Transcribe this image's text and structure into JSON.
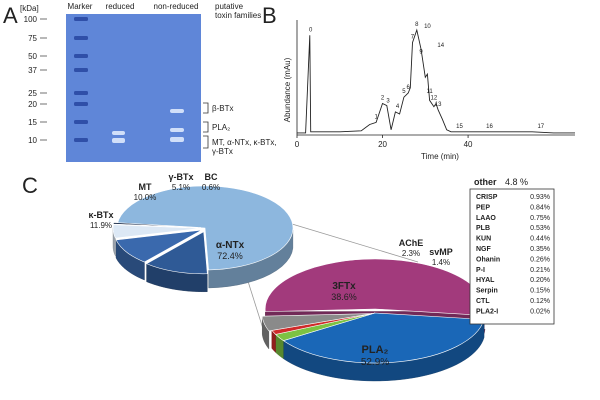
{
  "panels": {
    "a": "A",
    "b": "B",
    "c": "C"
  },
  "gel": {
    "unit_label": "[kDa]",
    "columns": [
      "Marker",
      "reduced",
      "non-reduced",
      "putative\ntoxin families"
    ],
    "markers": [
      "100",
      "75",
      "50",
      "37",
      "25",
      "20",
      "15",
      "10"
    ],
    "families": [
      "β-BTx",
      "PLA₂",
      "MT, α-NTx, κ-BTx,\nγ-BTx"
    ],
    "colors": {
      "gel": "#5f86d8",
      "band": "#d7e4fb"
    }
  },
  "chart_data": [
    {
      "type": "line",
      "panel": "B",
      "xlabel": "Time (min)",
      "ylabel": "Abundance (mAu)",
      "xlim": [
        0,
        65
      ],
      "xticks": [
        "0",
        "20",
        "40"
      ],
      "x": [
        0,
        2,
        3,
        3.2,
        5,
        10,
        15,
        17,
        18.5,
        20,
        21,
        22,
        23,
        24,
        25,
        26,
        26.5,
        27,
        28,
        29,
        30,
        30.5,
        31,
        32,
        32.5,
        33,
        34,
        35,
        36,
        38,
        40,
        45,
        50,
        55,
        60,
        65
      ],
      "y": [
        2,
        2,
        95,
        3,
        3,
        3,
        4,
        10,
        12,
        30,
        28,
        5,
        22,
        20,
        36,
        40,
        45,
        88,
        100,
        82,
        55,
        58,
        33,
        27,
        30,
        24,
        15,
        5,
        3,
        3,
        3,
        3,
        3,
        3,
        2,
        2
      ],
      "peak_labels": [
        {
          "label": "0",
          "x": 3.2,
          "y": 95
        },
        {
          "label": "1",
          "x": 18.5,
          "y": 12
        },
        {
          "label": "2",
          "x": 20,
          "y": 30
        },
        {
          "label": "3",
          "x": 21.3,
          "y": 27
        },
        {
          "label": "4",
          "x": 23.5,
          "y": 22
        },
        {
          "label": "5",
          "x": 25,
          "y": 36
        },
        {
          "label": "6",
          "x": 26,
          "y": 40
        },
        {
          "label": "7",
          "x": 27,
          "y": 88
        },
        {
          "label": "8",
          "x": 28,
          "y": 100
        },
        {
          "label": "9",
          "x": 29,
          "y": 74
        },
        {
          "label": "10",
          "x": 30.5,
          "y": 98
        },
        {
          "label": "11",
          "x": 31,
          "y": 36
        },
        {
          "label": "12",
          "x": 32,
          "y": 30
        },
        {
          "label": "13",
          "x": 33,
          "y": 24
        },
        {
          "label": "14",
          "x": 33.6,
          "y": 80
        },
        {
          "label": "15",
          "x": 38,
          "y": 3
        },
        {
          "label": "16",
          "x": 45,
          "y": 3
        },
        {
          "label": "17",
          "x": 57,
          "y": 3
        }
      ]
    },
    {
      "type": "pie",
      "panel": "C",
      "series": [
        {
          "label": "α-NTx",
          "value": 72.4,
          "display": "72.4%",
          "color": "#8db7de"
        },
        {
          "label": "κ-BTx",
          "value": 11.9,
          "display": "11.9%",
          "color": "#2f5a96"
        },
        {
          "label": "MT",
          "value": 10.0,
          "display": "10.0%",
          "color": "#3a69ad"
        },
        {
          "label": "γ-BTx",
          "value": 5.1,
          "display": "5.1%",
          "color": "#dce8f5"
        },
        {
          "label": "BC",
          "value": 0.6,
          "display": "0.6%",
          "color": "#1c2d4a"
        }
      ]
    },
    {
      "type": "pie",
      "panel": "C",
      "series": [
        {
          "label": "PLA₂",
          "value": 52.9,
          "display": "52.9%",
          "color": "#a23a7c"
        },
        {
          "label": "3FTx",
          "value": 38.6,
          "display": "38.6%",
          "color": "#1a67b7"
        },
        {
          "label": "AChE",
          "value": 2.3,
          "display": "2.3%",
          "color": "#7cc242"
        },
        {
          "label": "svMP",
          "value": 1.4,
          "display": "1.4%",
          "color": "#cf2a2a"
        },
        {
          "label": "other",
          "value": 4.8,
          "display": "4.8 %",
          "color": "#8a8a8a"
        }
      ]
    }
  ],
  "other": {
    "title": "other",
    "value": "4.8 %",
    "items": [
      {
        "name": "CRISP",
        "value": "0.93%"
      },
      {
        "name": "PEP",
        "value": "0.84%"
      },
      {
        "name": "LAAO",
        "value": "0.75%"
      },
      {
        "name": "PLB",
        "value": "0.53%"
      },
      {
        "name": "KUN",
        "value": "0.44%"
      },
      {
        "name": "NGF",
        "value": "0.35%"
      },
      {
        "name": "Ohanin",
        "value": "0.26%"
      },
      {
        "name": "P-I",
        "value": "0.21%"
      },
      {
        "name": "HYAL",
        "value": "0.20%"
      },
      {
        "name": "Serpin",
        "value": "0.15%"
      },
      {
        "name": "CTL",
        "value": "0.12%"
      },
      {
        "name": "PLA2-I",
        "value": "0.02%"
      }
    ]
  }
}
